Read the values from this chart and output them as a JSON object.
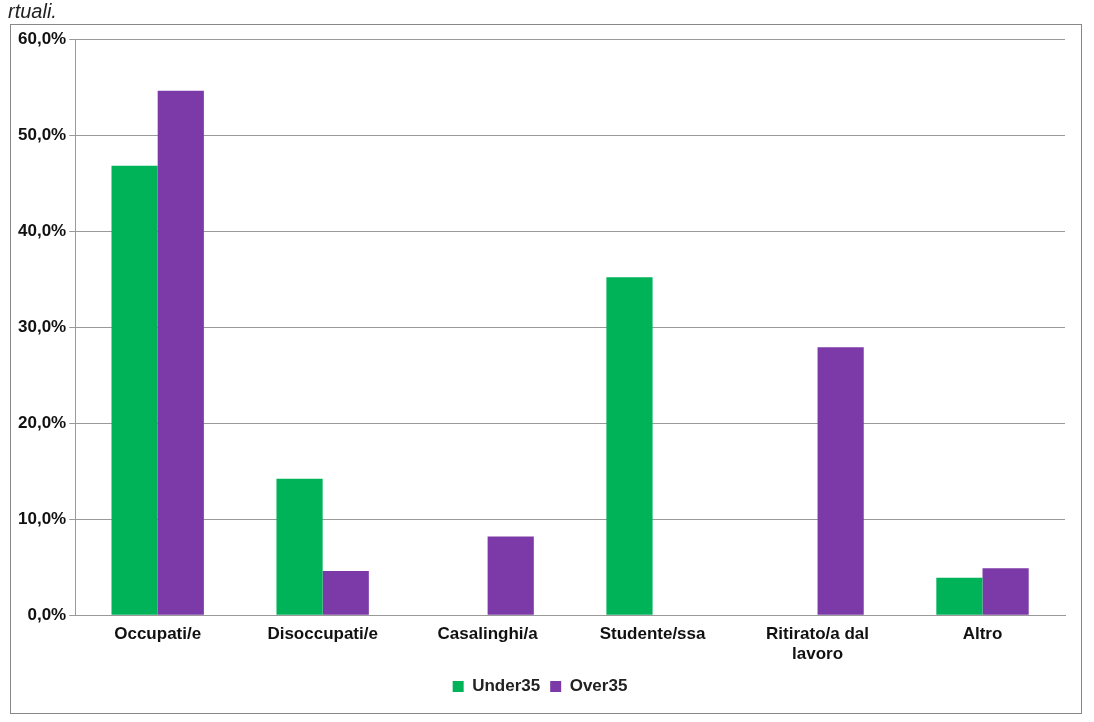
{
  "chart_data": {
    "type": "bar",
    "annotations": [
      "rtuali."
    ],
    "categories": [
      "Occupati/e",
      "Disoccupati/e",
      "Casalinghi/a",
      "Studente/ssa",
      "Ritirato/a dal lavoro",
      "Altro"
    ],
    "series": [
      {
        "name": "Under35",
        "color": "#00b359",
        "values": [
          46.8,
          14.2,
          0,
          35.2,
          0,
          3.9
        ]
      },
      {
        "name": "Over35",
        "color": "#7b3aa7",
        "values": [
          54.6,
          4.6,
          8.2,
          0,
          27.9,
          4.9
        ]
      }
    ],
    "ylim": [
      0,
      60
    ],
    "yticks": [
      {
        "value": 0,
        "label": "0,0%"
      },
      {
        "value": 10,
        "label": "10,0%"
      },
      {
        "value": 20,
        "label": "20,0%"
      },
      {
        "value": 30,
        "label": "30,0%"
      },
      {
        "value": 40,
        "label": "40,0%"
      },
      {
        "value": 50,
        "label": "50,0%"
      },
      {
        "value": 60,
        "label": "60,0%"
      }
    ],
    "grid": "y",
    "legend": "bottom"
  }
}
